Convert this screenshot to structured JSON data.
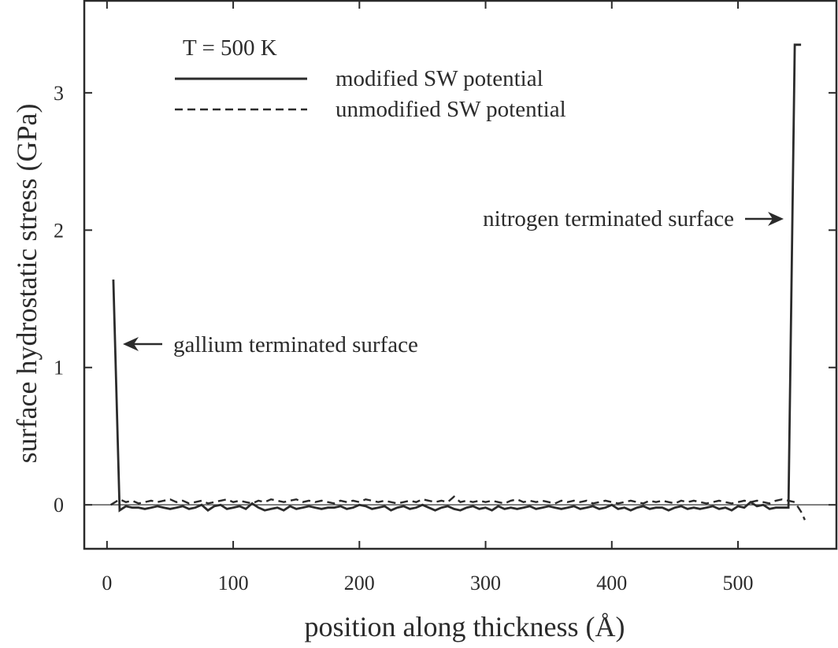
{
  "chart_data": {
    "type": "line",
    "title": "",
    "xlabel": "position along thickness (Å)",
    "ylabel": "surface hydrostatic stress (GPa)",
    "xlim": [
      -18,
      578
    ],
    "ylim": [
      -0.32,
      3.67
    ],
    "xticks": [
      0,
      100,
      200,
      300,
      400,
      500
    ],
    "yticks": [
      0,
      1,
      2,
      3
    ],
    "xtick_labels": [
      "0",
      "100",
      "200",
      "300",
      "400",
      "500"
    ],
    "ytick_labels": [
      "0",
      "1",
      "2",
      "3"
    ],
    "zero_line": true,
    "legend": {
      "placement": "top-left",
      "header": "T = 500 K",
      "entries": [
        {
          "label": "modified SW potential",
          "style": "solid"
        },
        {
          "label": "unmodified SW potential",
          "style": "dashed"
        }
      ]
    },
    "annotations": [
      {
        "text": "gallium terminated surface",
        "arrow": "left",
        "x": 12,
        "y": 1.18
      },
      {
        "text": "nitrogen terminated surface",
        "arrow": "right",
        "x": 540,
        "y": 2.08
      }
    ],
    "series": [
      {
        "name": "modified SW potential",
        "style": "solid",
        "x": [
          5,
          10,
          15,
          20,
          25,
          30,
          35,
          40,
          45,
          50,
          55,
          60,
          65,
          70,
          75,
          80,
          85,
          90,
          95,
          100,
          105,
          110,
          115,
          120,
          125,
          130,
          135,
          140,
          145,
          150,
          155,
          160,
          165,
          170,
          175,
          180,
          185,
          190,
          195,
          200,
          205,
          210,
          215,
          220,
          225,
          230,
          235,
          240,
          245,
          250,
          255,
          260,
          265,
          270,
          275,
          280,
          285,
          290,
          295,
          300,
          305,
          310,
          315,
          320,
          325,
          330,
          335,
          340,
          345,
          350,
          355,
          360,
          365,
          370,
          375,
          380,
          385,
          390,
          395,
          400,
          405,
          410,
          415,
          420,
          425,
          430,
          435,
          440,
          445,
          450,
          455,
          460,
          465,
          470,
          475,
          480,
          485,
          490,
          495,
          500,
          505,
          510,
          515,
          520,
          525,
          530,
          535,
          540,
          545,
          550
        ],
        "y": [
          1.64,
          -0.04,
          -0.01,
          -0.02,
          -0.02,
          -0.03,
          -0.02,
          -0.01,
          -0.02,
          -0.03,
          -0.02,
          -0.01,
          -0.03,
          -0.02,
          0.0,
          -0.04,
          -0.01,
          0.0,
          -0.03,
          -0.02,
          -0.01,
          -0.03,
          0.01,
          -0.02,
          -0.04,
          -0.03,
          -0.02,
          -0.04,
          -0.01,
          -0.03,
          -0.02,
          -0.01,
          -0.02,
          -0.03,
          -0.02,
          -0.02,
          -0.01,
          -0.03,
          -0.02,
          0.0,
          -0.01,
          -0.03,
          -0.02,
          -0.01,
          -0.04,
          -0.02,
          -0.01,
          -0.03,
          -0.02,
          0.0,
          -0.02,
          -0.04,
          -0.02,
          -0.01,
          -0.03,
          -0.04,
          -0.02,
          -0.01,
          -0.03,
          -0.02,
          -0.04,
          -0.01,
          -0.03,
          -0.02,
          -0.03,
          -0.02,
          -0.01,
          -0.03,
          -0.02,
          -0.01,
          -0.02,
          -0.03,
          -0.02,
          -0.01,
          -0.03,
          -0.02,
          -0.01,
          -0.03,
          -0.02,
          0.0,
          -0.03,
          -0.02,
          -0.04,
          -0.02,
          -0.01,
          -0.03,
          -0.02,
          -0.02,
          -0.04,
          -0.02,
          -0.01,
          -0.03,
          -0.02,
          -0.03,
          -0.02,
          -0.01,
          -0.03,
          -0.02,
          -0.04,
          -0.01,
          -0.02,
          0.02,
          -0.01,
          0.0,
          -0.03,
          -0.02,
          -0.02,
          -0.02,
          3.35,
          3.35
        ]
      },
      {
        "name": "unmodified SW potential",
        "style": "dashed",
        "x": [
          3,
          10,
          15,
          20,
          25,
          30,
          35,
          40,
          45,
          50,
          55,
          60,
          65,
          70,
          75,
          80,
          85,
          90,
          95,
          100,
          105,
          110,
          115,
          120,
          125,
          130,
          135,
          140,
          145,
          150,
          155,
          160,
          165,
          170,
          175,
          180,
          185,
          190,
          195,
          200,
          205,
          210,
          215,
          220,
          225,
          230,
          235,
          240,
          245,
          250,
          255,
          260,
          265,
          270,
          275,
          280,
          285,
          290,
          295,
          300,
          305,
          310,
          315,
          320,
          325,
          330,
          335,
          340,
          345,
          350,
          355,
          360,
          365,
          370,
          375,
          380,
          385,
          390,
          395,
          400,
          405,
          410,
          415,
          420,
          425,
          430,
          435,
          440,
          445,
          450,
          455,
          460,
          465,
          470,
          475,
          480,
          485,
          490,
          495,
          500,
          505,
          510,
          515,
          520,
          525,
          530,
          535,
          540,
          545,
          550,
          553
        ],
        "y": [
          0.0,
          0.04,
          0.02,
          0.03,
          0.01,
          0.02,
          0.03,
          0.02,
          0.03,
          0.04,
          0.02,
          0.03,
          0.01,
          0.02,
          0.03,
          0.01,
          0.02,
          0.03,
          0.04,
          0.02,
          0.03,
          0.02,
          0.01,
          0.03,
          0.02,
          0.04,
          0.03,
          0.02,
          0.03,
          0.04,
          0.02,
          0.03,
          0.02,
          0.03,
          0.02,
          0.01,
          0.03,
          0.02,
          0.03,
          0.02,
          0.04,
          0.03,
          0.02,
          0.03,
          0.02,
          0.01,
          0.02,
          0.03,
          0.02,
          0.04,
          0.03,
          0.02,
          0.03,
          0.02,
          0.06,
          0.02,
          0.03,
          0.02,
          0.03,
          0.02,
          0.03,
          0.02,
          0.01,
          0.03,
          0.04,
          0.02,
          0.03,
          0.02,
          0.03,
          0.02,
          0.01,
          0.03,
          0.02,
          0.03,
          0.02,
          0.03,
          0.01,
          0.02,
          0.03,
          0.02,
          0.01,
          0.02,
          0.03,
          0.02,
          0.01,
          0.03,
          0.02,
          0.03,
          0.02,
          0.01,
          0.03,
          0.02,
          0.03,
          0.02,
          0.01,
          0.02,
          0.03,
          0.02,
          0.01,
          0.02,
          0.03,
          0.02,
          0.03,
          0.02,
          0.01,
          0.03,
          0.04,
          0.03,
          0.02,
          -0.05,
          -0.11
        ]
      }
    ]
  }
}
